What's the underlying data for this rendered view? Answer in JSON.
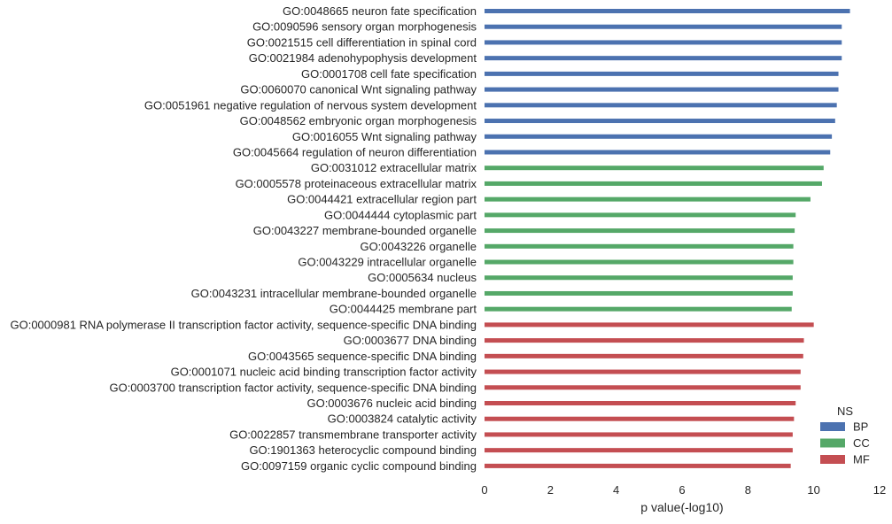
{
  "chart_data": {
    "type": "bar",
    "orientation": "horizontal",
    "xlabel": "p value(-log10)",
    "ylabel": "",
    "xlim": [
      0,
      12
    ],
    "xticks": [
      0,
      2,
      4,
      6,
      8,
      10,
      12
    ],
    "grid": false,
    "legend": {
      "title": "NS",
      "placement": "bottom-right",
      "entries": [
        {
          "name": "BP",
          "color": "#4c72b0"
        },
        {
          "name": "CC",
          "color": "#55a868"
        },
        {
          "name": "MF",
          "color": "#c44e52"
        }
      ]
    },
    "categories": [
      "GO:0048665 neuron fate specification",
      "GO:0090596 sensory organ morphogenesis",
      "GO:0021515 cell differentiation in spinal cord",
      "GO:0021984 adenohypophysis development",
      "GO:0001708 cell fate specification",
      "GO:0060070 canonical Wnt signaling pathway",
      "GO:0051961 negative regulation of nervous system development",
      "GO:0048562 embryonic organ morphogenesis",
      "GO:0016055 Wnt signaling pathway",
      "GO:0045664 regulation of neuron differentiation",
      "GO:0031012 extracellular matrix",
      "GO:0005578 proteinaceous extracellular matrix",
      "GO:0044421 extracellular region part",
      "GO:0044444 cytoplasmic part",
      "GO:0043227 membrane-bounded organelle",
      "GO:0043226 organelle",
      "GO:0043229 intracellular organelle",
      "GO:0005634 nucleus",
      "GO:0043231 intracellular membrane-bounded organelle",
      "GO:0044425 membrane part",
      "GO:0000981 RNA polymerase II transcription factor activity, sequence-specific DNA binding",
      "GO:0003677 DNA binding",
      "GO:0043565 sequence-specific DNA binding",
      "GO:0001071 nucleic acid binding transcription factor activity",
      "GO:0003700 transcription factor activity, sequence-specific DNA binding",
      "GO:0003676 nucleic acid binding",
      "GO:0003824 catalytic activity",
      "GO:0022857 transmembrane transporter activity",
      "GO:1901363 heterocyclic compound binding",
      "GO:0097159 organic cyclic compound binding"
    ],
    "series": [
      {
        "name": "BP",
        "values": [
          11.1,
          10.85,
          10.85,
          10.85,
          10.75,
          10.75,
          10.7,
          10.65,
          10.55,
          10.5,
          null,
          null,
          null,
          null,
          null,
          null,
          null,
          null,
          null,
          null,
          null,
          null,
          null,
          null,
          null,
          null,
          null,
          null,
          null,
          null
        ]
      },
      {
        "name": "CC",
        "values": [
          null,
          null,
          null,
          null,
          null,
          null,
          null,
          null,
          null,
          null,
          10.3,
          10.25,
          9.9,
          9.45,
          9.42,
          9.38,
          9.38,
          9.36,
          9.36,
          9.33,
          null,
          null,
          null,
          null,
          null,
          null,
          null,
          null,
          null,
          null
        ]
      },
      {
        "name": "MF",
        "values": [
          null,
          null,
          null,
          null,
          null,
          null,
          null,
          null,
          null,
          null,
          null,
          null,
          null,
          null,
          null,
          null,
          null,
          null,
          null,
          null,
          10.0,
          9.7,
          9.68,
          9.6,
          9.6,
          9.45,
          9.4,
          9.36,
          9.36,
          9.3
        ]
      }
    ]
  }
}
